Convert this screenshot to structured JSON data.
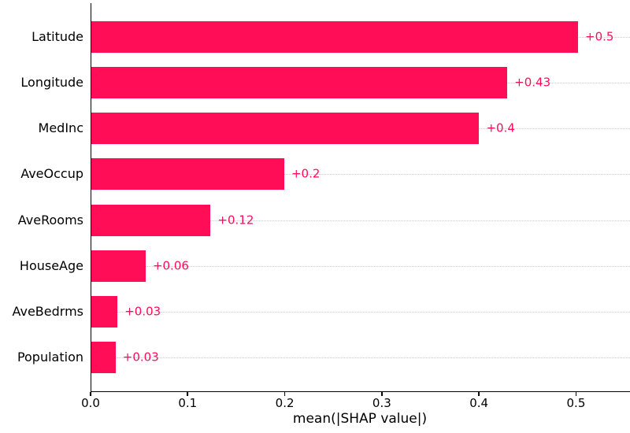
{
  "chart_data": {
    "type": "bar",
    "orientation": "horizontal",
    "title": "",
    "xlabel": "mean(|SHAP value|)",
    "ylabel": "",
    "categories": [
      "Latitude",
      "Longitude",
      "MedInc",
      "AveOccup",
      "AveRooms",
      "HouseAge",
      "AveBedrms",
      "Population"
    ],
    "values": [
      0.502,
      0.429,
      0.4,
      0.199,
      0.123,
      0.056,
      0.027,
      0.025
    ],
    "value_labels": [
      "+0.5",
      "+0.43",
      "+0.4",
      "+0.2",
      "+0.12",
      "+0.06",
      "+0.03",
      "+0.03"
    ],
    "x_ticks": [
      0.0,
      0.1,
      0.2,
      0.3,
      0.4,
      0.5
    ],
    "x_tick_labels": [
      "0.0",
      "0.1",
      "0.2",
      "0.3",
      "0.4",
      "0.5"
    ],
    "xlim": [
      0,
      0.5556
    ],
    "grid": "horizontal-dotted",
    "legend_position": "none",
    "bar_color": "#ff0d57",
    "value_label_color": "#ff0d57",
    "gridline_color": "#cccccc",
    "spine_color": "#000000"
  }
}
